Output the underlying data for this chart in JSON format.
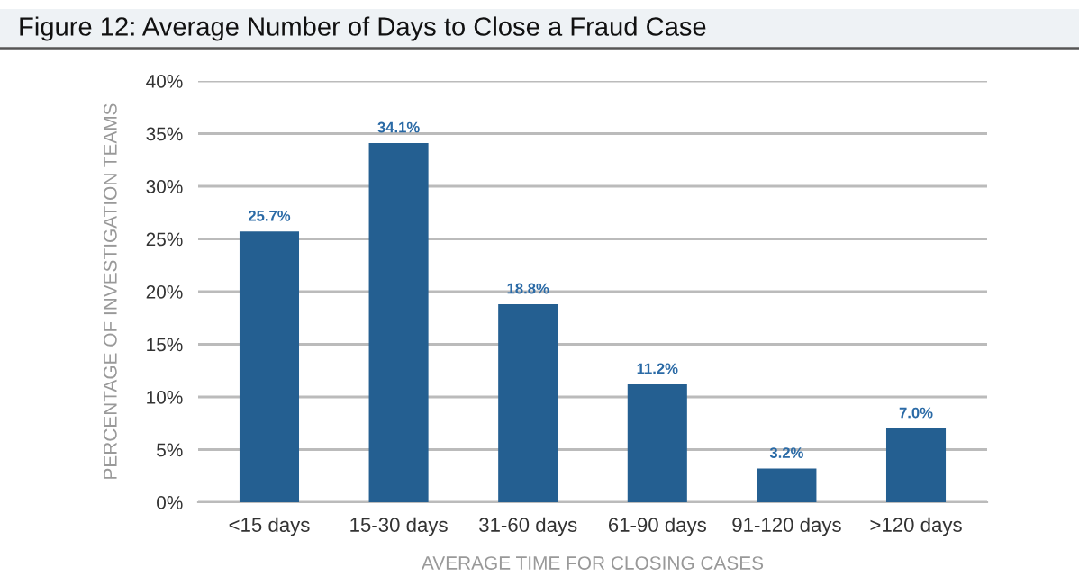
{
  "chart_data": {
    "type": "bar",
    "title": "Figure 12: Average Number of Days to Close a Fraud Case",
    "xlabel": "AVERAGE TIME FOR CLOSING CASES",
    "ylabel": "PERCENTAGE OF INVESTIGATION TEAMS",
    "categories": [
      "<15 days",
      "15-30 days",
      "31-60 days",
      "61-90 days",
      "91-120 days",
      ">120 days"
    ],
    "values": [
      25.7,
      34.1,
      18.8,
      11.2,
      3.2,
      7.0
    ],
    "value_labels": [
      "25.7%",
      "34.1%",
      "18.8%",
      "11.2%",
      "3.2%",
      "7.0%"
    ],
    "color": "#245f91",
    "ylim": [
      0,
      40
    ],
    "yticks": [
      {
        "value": 0,
        "label": "0%"
      },
      {
        "value": 5,
        "label": "5%"
      },
      {
        "value": 10,
        "label": "10%"
      },
      {
        "value": 15,
        "label": "15%"
      },
      {
        "value": 20,
        "label": "20%"
      },
      {
        "value": 25,
        "label": "25%"
      },
      {
        "value": 30,
        "label": "30%"
      },
      {
        "value": 35,
        "label": "35%"
      },
      {
        "value": 40,
        "label": "40%"
      }
    ],
    "grid": "y"
  }
}
